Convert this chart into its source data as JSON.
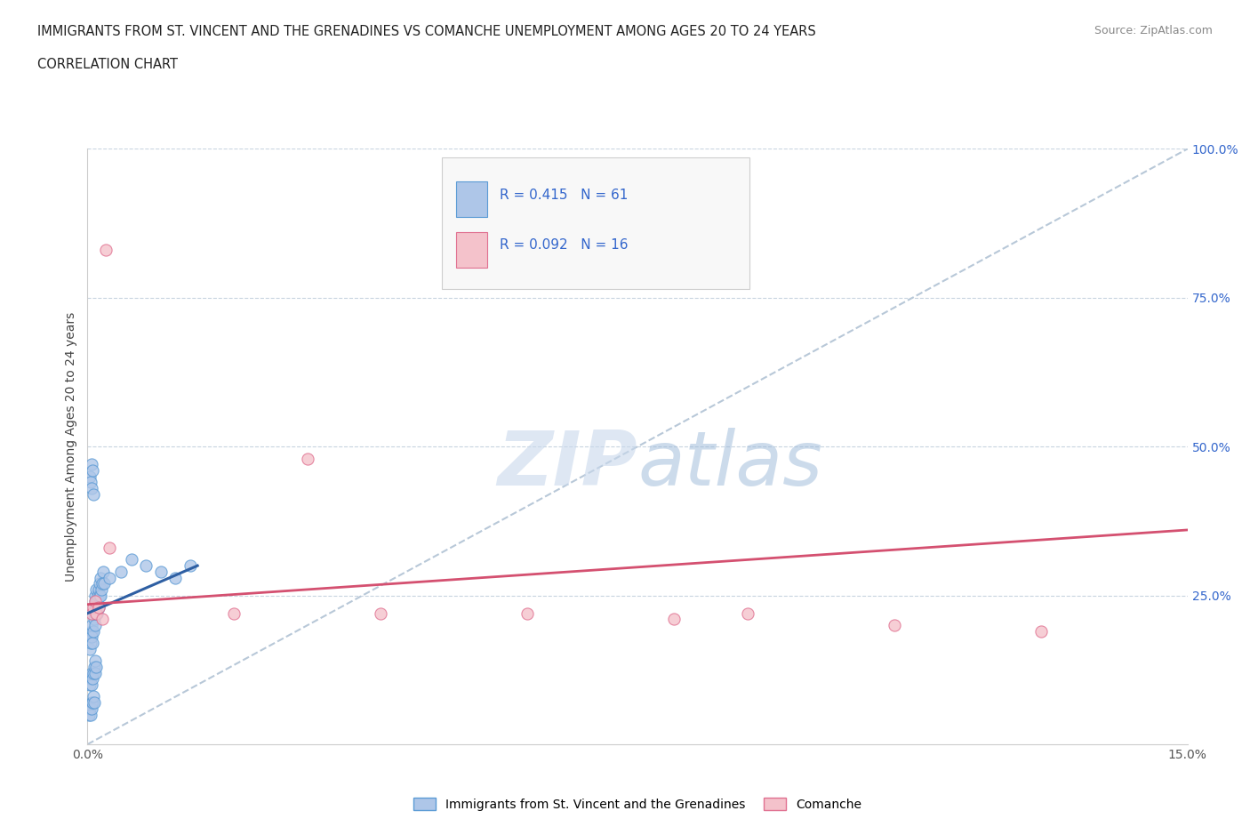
{
  "title_line1": "IMMIGRANTS FROM ST. VINCENT AND THE GRENADINES VS COMANCHE UNEMPLOYMENT AMONG AGES 20 TO 24 YEARS",
  "title_line2": "CORRELATION CHART",
  "source_text": "Source: ZipAtlas.com",
  "ylabel": "Unemployment Among Ages 20 to 24 years",
  "xlim": [
    0.0,
    0.15
  ],
  "ylim": [
    0.0,
    1.0
  ],
  "blue_color": "#aec6e8",
  "blue_edge": "#5b9bd5",
  "pink_color": "#f4c2cb",
  "pink_edge": "#e07090",
  "trend_blue": "#2e5fa3",
  "trend_pink": "#d45070",
  "diag_color": "#b8c8d8",
  "r_blue": 0.415,
  "n_blue": 61,
  "r_pink": 0.092,
  "n_pink": 16,
  "legend_label_blue": "Immigrants from St. Vincent and the Grenadines",
  "legend_label_pink": "Comanche",
  "blue_x": [
    0.0002,
    0.0003,
    0.0004,
    0.0005,
    0.0005,
    0.0006,
    0.0007,
    0.0007,
    0.0008,
    0.0009,
    0.001,
    0.001,
    0.001,
    0.0011,
    0.0011,
    0.0012,
    0.0012,
    0.0013,
    0.0013,
    0.0014,
    0.0015,
    0.0015,
    0.0016,
    0.0017,
    0.0018,
    0.0018,
    0.0019,
    0.002,
    0.0021,
    0.0022,
    0.0003,
    0.0004,
    0.0005,
    0.0006,
    0.0007,
    0.0008,
    0.0009,
    0.001,
    0.0011,
    0.0012,
    0.0002,
    0.0003,
    0.0004,
    0.0005,
    0.0006,
    0.0007,
    0.0008,
    0.0009,
    0.0003,
    0.0004,
    0.0005,
    0.0006,
    0.0007,
    0.0008,
    0.003,
    0.0045,
    0.006,
    0.008,
    0.01,
    0.012,
    0.014
  ],
  "blue_y": [
    0.18,
    0.16,
    0.17,
    0.19,
    0.2,
    0.18,
    0.17,
    0.22,
    0.19,
    0.21,
    0.2,
    0.23,
    0.25,
    0.22,
    0.24,
    0.23,
    0.26,
    0.22,
    0.24,
    0.25,
    0.23,
    0.26,
    0.25,
    0.27,
    0.25,
    0.28,
    0.26,
    0.27,
    0.29,
    0.27,
    0.1,
    0.11,
    0.1,
    0.12,
    0.11,
    0.12,
    0.13,
    0.12,
    0.14,
    0.13,
    0.05,
    0.06,
    0.05,
    0.07,
    0.06,
    0.07,
    0.08,
    0.07,
    0.45,
    0.44,
    0.47,
    0.43,
    0.46,
    0.42,
    0.28,
    0.29,
    0.31,
    0.3,
    0.29,
    0.28,
    0.3
  ],
  "pink_x": [
    0.0005,
    0.0008,
    0.001,
    0.0012,
    0.0015,
    0.002,
    0.0025,
    0.003,
    0.02,
    0.03,
    0.04,
    0.06,
    0.08,
    0.09,
    0.11,
    0.13
  ],
  "pink_y": [
    0.22,
    0.23,
    0.24,
    0.22,
    0.23,
    0.21,
    0.83,
    0.33,
    0.22,
    0.48,
    0.22,
    0.22,
    0.21,
    0.22,
    0.2,
    0.19
  ],
  "watermark_zip": "ZIP",
  "watermark_atlas": "atlas",
  "bg_color": "#ffffff",
  "grid_color": "#c8d4e0"
}
